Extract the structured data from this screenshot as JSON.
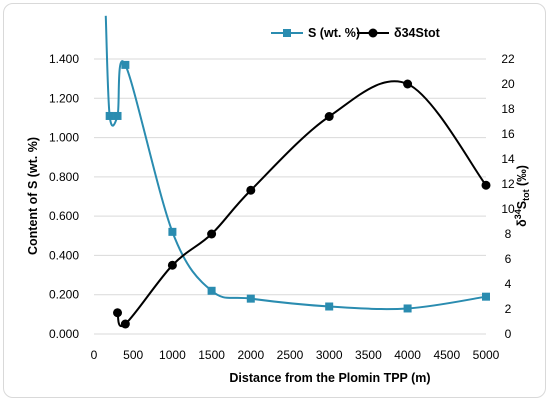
{
  "chart_data": {
    "type": "line",
    "x_axis": {
      "label": "Distance from the Plomin TPP (m)",
      "range": [
        0,
        5000
      ],
      "ticks": [
        "0",
        "500",
        "1000",
        "1500",
        "2000",
        "2500",
        "3000",
        "3500",
        "4000",
        "4500",
        "5000"
      ]
    },
    "y_left": {
      "label": "Content of S (wt. %)",
      "range": [
        0,
        1.4
      ],
      "ticks": [
        "0.000",
        "0.200",
        "0.400",
        "0.600",
        "0.800",
        "1.000",
        "1.200",
        "1.400"
      ]
    },
    "y_right": {
      "label_main": "δ",
      "label_sup": "34",
      "label_s": "S",
      "label_sub": "tot",
      "label_unit": " (‰)",
      "range": [
        0,
        22
      ],
      "ticks": [
        "0",
        "2",
        "4",
        "6",
        "8",
        "10",
        "12",
        "14",
        "16",
        "18",
        "20",
        "22"
      ]
    },
    "legend_position": "top",
    "series": [
      {
        "name": "S (wt. %)",
        "axis": "left",
        "color": "#2a8cb0",
        "marker": "square",
        "smooth": true,
        "x": [
          150,
          200,
          300,
          400,
          1000,
          1500,
          2000,
          3000,
          4000,
          5000
        ],
        "y": [
          1.62,
          1.11,
          1.11,
          1.37,
          0.52,
          0.22,
          0.18,
          0.14,
          0.13,
          0.19
        ],
        "marker_x": [
          200,
          300,
          400,
          1000,
          1500,
          2000,
          3000,
          4000,
          5000
        ]
      },
      {
        "name": "δ34Stot",
        "axis": "right",
        "color": "#000000",
        "marker": "circle",
        "smooth": true,
        "x": [
          300,
          400,
          1000,
          1500,
          2000,
          3000,
          4000,
          5000
        ],
        "y": [
          1.7,
          0.8,
          5.5,
          8.0,
          11.5,
          17.4,
          20.0,
          11.9
        ],
        "marker_x": [
          300,
          400,
          1000,
          1500,
          2000,
          3000,
          4000,
          5000
        ]
      }
    ]
  }
}
